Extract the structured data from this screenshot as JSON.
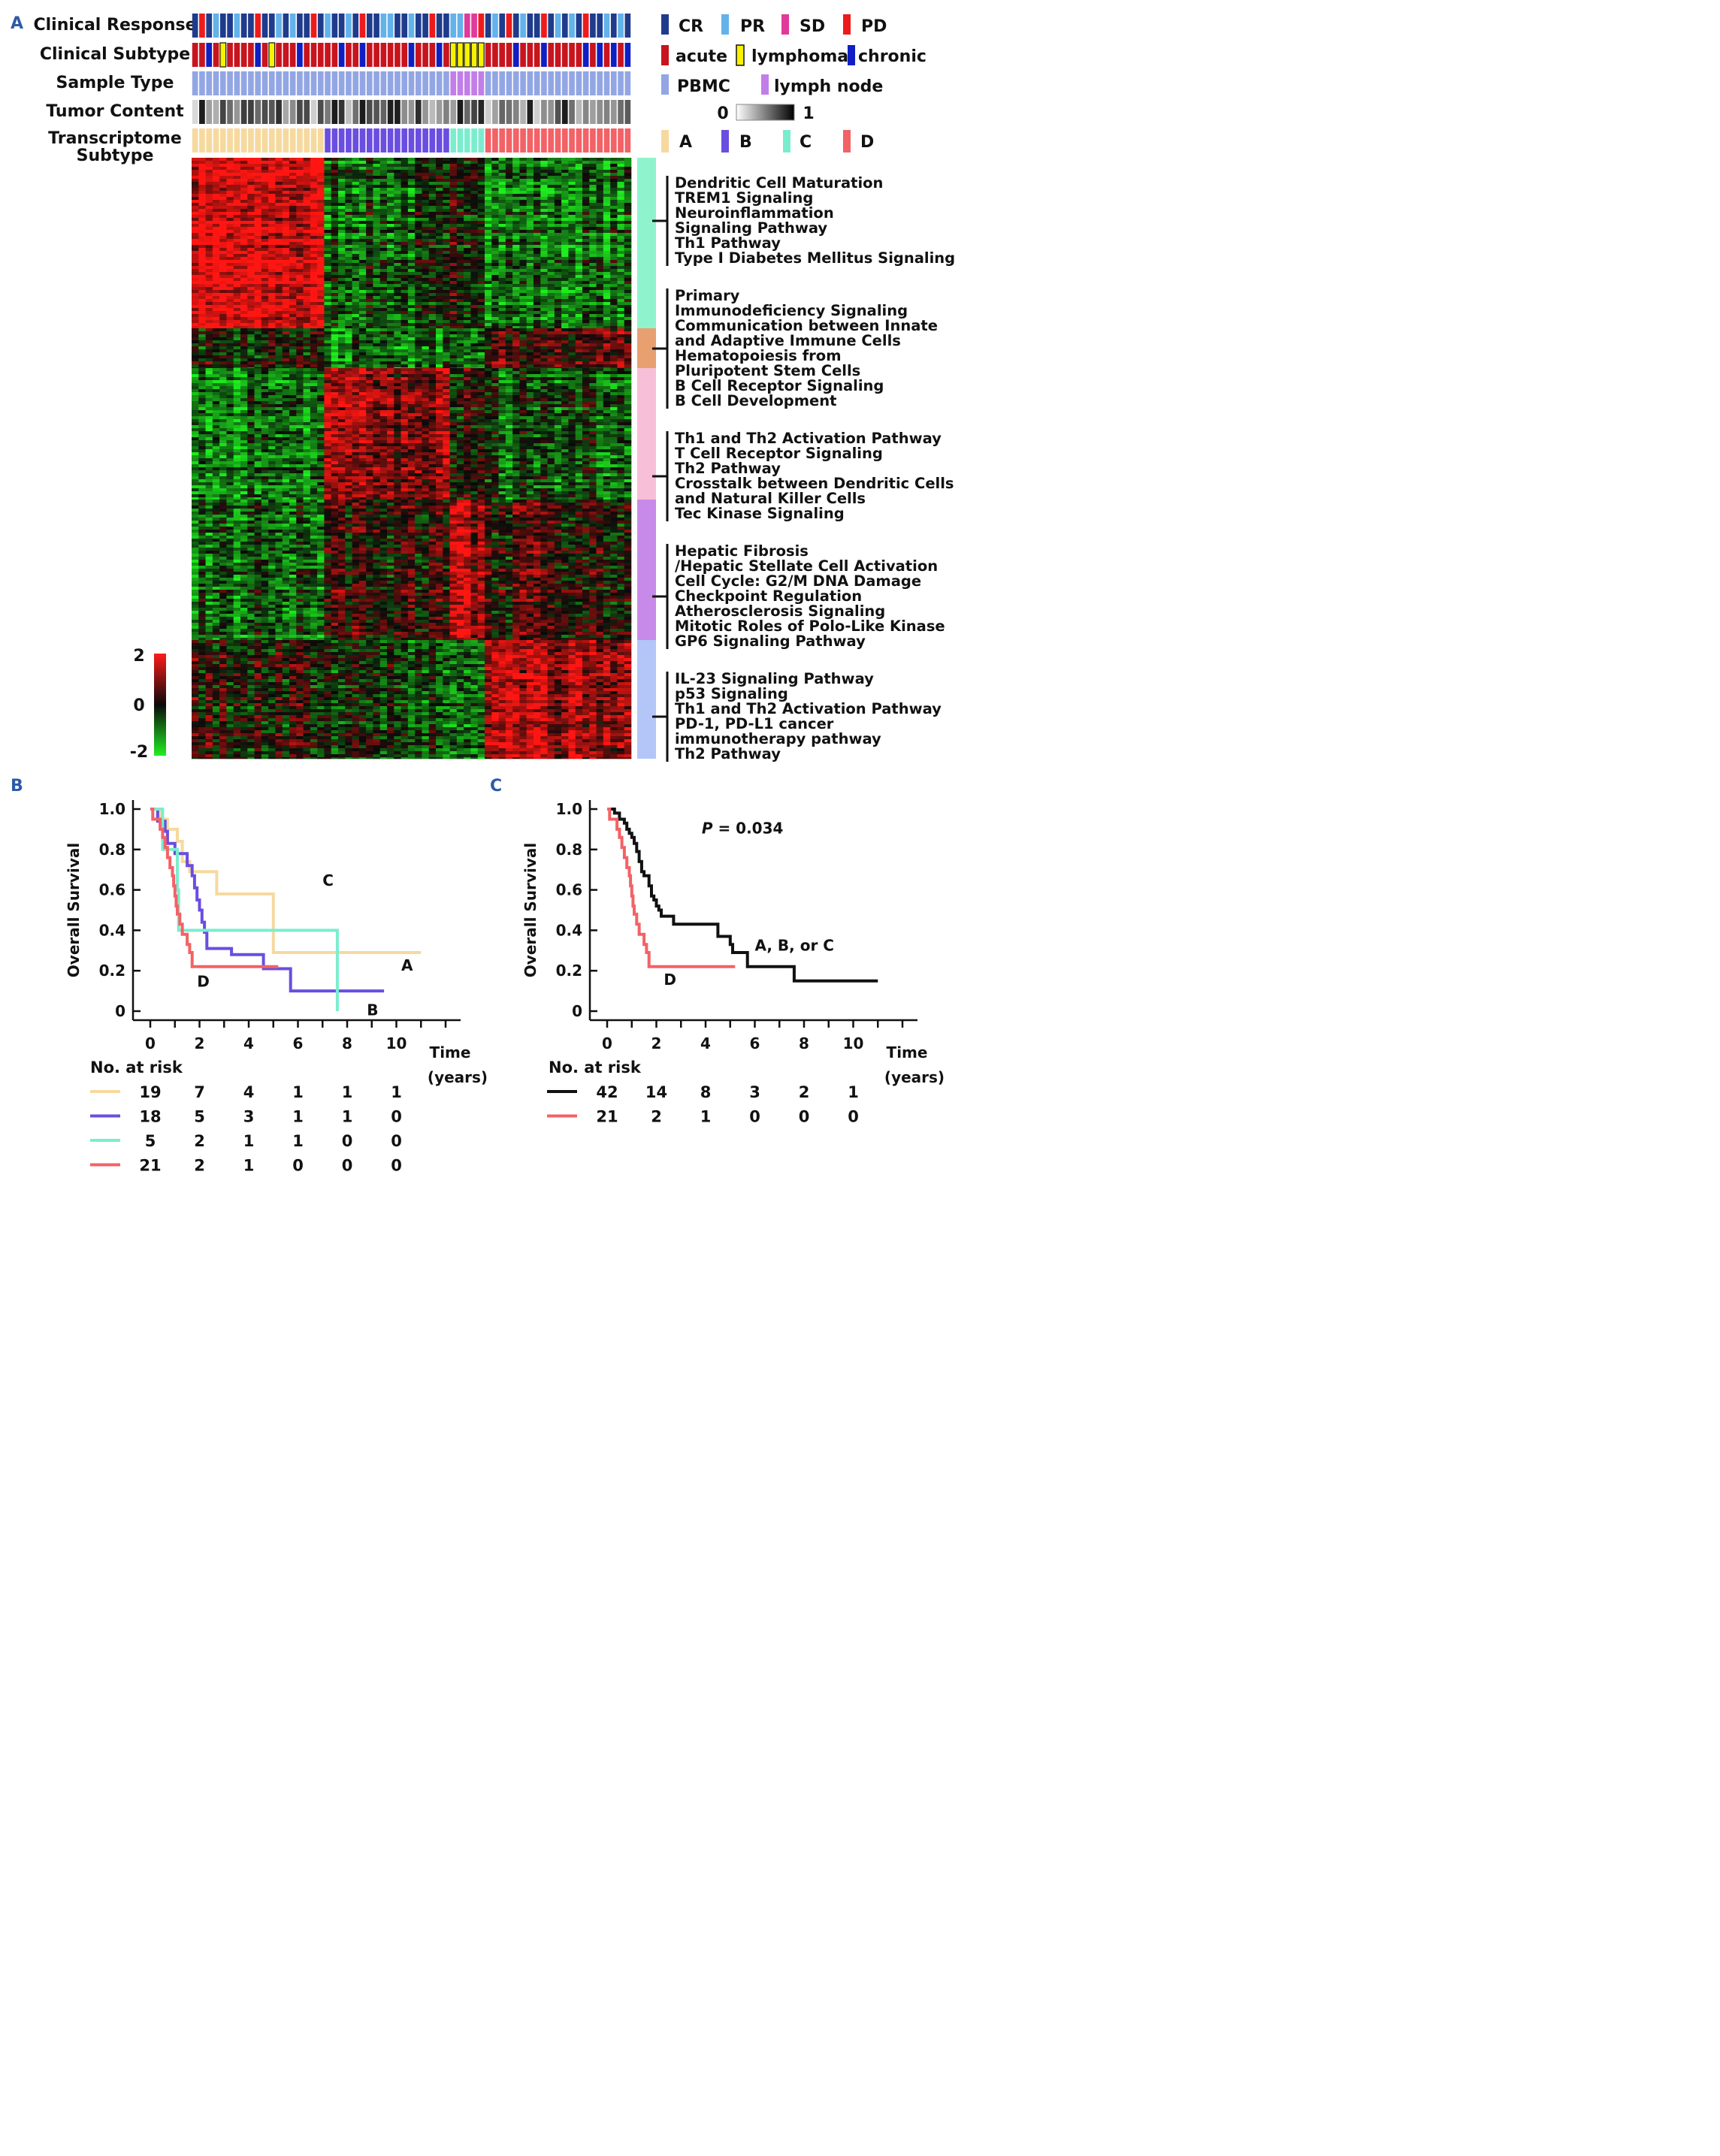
{
  "panels": {
    "a": "A",
    "b": "B",
    "c": "C"
  },
  "colors": {
    "CR": "#1f3b8c",
    "PR": "#63b2ea",
    "SD": "#e03a9b",
    "PD": "#ee1b1b",
    "acute": "#c8141e",
    "lymphoma": "#f6f200",
    "chronic": "#0f1fc4",
    "PBMC": "#93a6e4",
    "lymph_node": "#c27ee8",
    "A": "#f6d99e",
    "B": "#6a4ee0",
    "C": "#7bedcf",
    "D": "#f26266",
    "module1": "#8ff4cd",
    "module2": "#e8a070",
    "module3": "#f8bfd8",
    "module4": "#c88ae8",
    "module5": "#b4c6f8"
  },
  "tracks": {
    "labels": [
      "Clinical Response",
      "Clinical Subtype",
      "Sample Type",
      "Tumor Content"
    ],
    "transcriptome_label": [
      "Transcriptome",
      "Subtype"
    ]
  },
  "legend": {
    "response": [
      "CR",
      "PR",
      "SD",
      "PD"
    ],
    "subtype": [
      "acute",
      "lymphoma",
      "chronic"
    ],
    "sample": [
      "PBMC",
      "lymph node"
    ],
    "tumor": {
      "min": "0",
      "max": "1"
    },
    "transcriptome": [
      "A",
      "B",
      "C",
      "D"
    ]
  },
  "heatmap": {
    "scale": {
      "max": "2",
      "mid": "0",
      "min": "-2"
    },
    "group_counts": {
      "A": 19,
      "B": 18,
      "C": 5,
      "D": 21
    }
  },
  "pathways": [
    [
      "Dendritic Cell Maturation",
      "TREM1 Signaling",
      "Neuroinflammation",
      "   Signaling Pathway",
      "Th1 Pathway",
      "Type I Diabetes Mellitus Signaling"
    ],
    [
      "Primary",
      "   Immunodeficiency Signaling",
      "Communication between Innate",
      "   and Adaptive Immune Cells",
      "Hematopoiesis from",
      "   Pluripotent Stem Cells",
      "B Cell Receptor Signaling",
      "B Cell Development"
    ],
    [
      "Th1 and Th2 Activation Pathway",
      "T Cell Receptor Signaling",
      "Th2 Pathway",
      "Crosstalk between Dendritic Cells",
      "   and Natural Killer Cells",
      "Tec Kinase Signaling"
    ],
    [
      "Hepatic Fibrosis",
      "   /Hepatic Stellate Cell Activation",
      "Cell Cycle: G2/M DNA Damage",
      "   Checkpoint Regulation",
      "Atherosclerosis Signaling",
      "Mitotic Roles of Polo-Like Kinase",
      "GP6 Signaling Pathway"
    ],
    [
      "IL-23 Signaling Pathway",
      "p53 Signaling",
      "Th1 and Th2 Activation Pathway",
      "PD-1, PD-L1 cancer",
      "   immunotherapy pathway",
      "Th2 Pathway"
    ]
  ],
  "chart_data": [
    {
      "type": "line",
      "panel": "B",
      "ylabel": "Overall Survival",
      "xlabel": "Time (years)",
      "xlabel_lines": [
        "Time",
        "(years)"
      ],
      "xlim": [
        0,
        12
      ],
      "ylim": [
        0,
        1.0
      ],
      "xticks": [
        0,
        2,
        4,
        6,
        8,
        10
      ],
      "yticks": [
        0,
        0.2,
        0.4,
        0.6,
        0.8,
        1.0
      ],
      "ytick_labels": [
        "0",
        "0.2",
        "0.4",
        "0.6",
        "0.8",
        "1.0"
      ],
      "series": [
        {
          "name": "A",
          "color": "#f6d99e",
          "label_at": [
            10.2,
            0.2
          ],
          "points": [
            [
              0,
              1.0
            ],
            [
              0.4,
              1.0
            ],
            [
              0.4,
              0.95
            ],
            [
              0.7,
              0.95
            ],
            [
              0.7,
              0.9
            ],
            [
              1.1,
              0.9
            ],
            [
              1.1,
              0.84
            ],
            [
              1.3,
              0.84
            ],
            [
              1.3,
              0.74
            ],
            [
              1.6,
              0.74
            ],
            [
              1.6,
              0.69
            ],
            [
              2.7,
              0.69
            ],
            [
              2.7,
              0.58
            ],
            [
              5.0,
              0.58
            ],
            [
              5.0,
              0.29
            ],
            [
              11.0,
              0.29
            ]
          ]
        },
        {
          "name": "B",
          "color": "#6a4ee0",
          "label_at": [
            8.8,
            -0.02
          ],
          "points": [
            [
              0,
              1.0
            ],
            [
              0.3,
              1.0
            ],
            [
              0.3,
              0.94
            ],
            [
              0.6,
              0.94
            ],
            [
              0.6,
              0.89
            ],
            [
              0.7,
              0.89
            ],
            [
              0.7,
              0.83
            ],
            [
              1.0,
              0.83
            ],
            [
              1.0,
              0.78
            ],
            [
              1.5,
              0.78
            ],
            [
              1.5,
              0.72
            ],
            [
              1.7,
              0.72
            ],
            [
              1.7,
              0.67
            ],
            [
              1.8,
              0.67
            ],
            [
              1.8,
              0.61
            ],
            [
              1.9,
              0.61
            ],
            [
              1.9,
              0.55
            ],
            [
              2.0,
              0.55
            ],
            [
              2.0,
              0.5
            ],
            [
              2.1,
              0.5
            ],
            [
              2.1,
              0.44
            ],
            [
              2.2,
              0.44
            ],
            [
              2.2,
              0.39
            ],
            [
              2.3,
              0.39
            ],
            [
              2.3,
              0.31
            ],
            [
              3.3,
              0.31
            ],
            [
              3.3,
              0.28
            ],
            [
              4.6,
              0.28
            ],
            [
              4.6,
              0.21
            ],
            [
              5.7,
              0.21
            ],
            [
              5.7,
              0.1
            ],
            [
              9.5,
              0.1
            ]
          ]
        },
        {
          "name": "C",
          "color": "#7bedcf",
          "label_at": [
            7.0,
            0.62
          ],
          "points": [
            [
              0,
              1.0
            ],
            [
              0.5,
              1.0
            ],
            [
              0.5,
              0.8
            ],
            [
              1.1,
              0.8
            ],
            [
              1.1,
              0.6
            ],
            [
              1.15,
              0.6
            ],
            [
              1.15,
              0.4
            ],
            [
              7.6,
              0.4
            ],
            [
              7.6,
              0.0
            ]
          ]
        },
        {
          "name": "D",
          "color": "#f26266",
          "label_at": [
            1.9,
            0.12
          ],
          "points": [
            [
              0,
              1.0
            ],
            [
              0.1,
              1.0
            ],
            [
              0.1,
              0.95
            ],
            [
              0.4,
              0.95
            ],
            [
              0.4,
              0.9
            ],
            [
              0.5,
              0.9
            ],
            [
              0.5,
              0.86
            ],
            [
              0.6,
              0.86
            ],
            [
              0.6,
              0.81
            ],
            [
              0.7,
              0.81
            ],
            [
              0.7,
              0.76
            ],
            [
              0.8,
              0.76
            ],
            [
              0.8,
              0.71
            ],
            [
              0.9,
              0.71
            ],
            [
              0.9,
              0.67
            ],
            [
              0.95,
              0.67
            ],
            [
              0.95,
              0.62
            ],
            [
              1.0,
              0.62
            ],
            [
              1.0,
              0.57
            ],
            [
              1.05,
              0.57
            ],
            [
              1.05,
              0.52
            ],
            [
              1.1,
              0.52
            ],
            [
              1.1,
              0.48
            ],
            [
              1.2,
              0.48
            ],
            [
              1.2,
              0.43
            ],
            [
              1.3,
              0.43
            ],
            [
              1.3,
              0.38
            ],
            [
              1.5,
              0.38
            ],
            [
              1.5,
              0.33
            ],
            [
              1.6,
              0.33
            ],
            [
              1.6,
              0.29
            ],
            [
              1.7,
              0.29
            ],
            [
              1.7,
              0.22
            ],
            [
              5.2,
              0.22
            ]
          ]
        }
      ],
      "risk_table": {
        "title": "No. at risk",
        "times": [
          "0",
          "2",
          "4",
          "6",
          "8",
          "10"
        ],
        "rows": [
          {
            "color": "#f6d99e",
            "values": [
              "19",
              "7",
              "4",
              "1",
              "1",
              "1"
            ]
          },
          {
            "color": "#6a4ee0",
            "values": [
              "18",
              "5",
              "3",
              "1",
              "1",
              "0"
            ]
          },
          {
            "color": "#7bedcf",
            "values": [
              "5",
              "2",
              "1",
              "1",
              "0",
              "0"
            ]
          },
          {
            "color": "#f26266",
            "values": [
              "21",
              "2",
              "1",
              "0",
              "0",
              "0"
            ]
          }
        ]
      }
    },
    {
      "type": "line",
      "panel": "C",
      "ylabel": "Overall Survival",
      "xlabel": "Time (years)",
      "xlabel_lines": [
        "Time",
        "(years)"
      ],
      "xlim": [
        0,
        12
      ],
      "ylim": [
        0,
        1.0
      ],
      "xticks": [
        0,
        2,
        4,
        6,
        8,
        10
      ],
      "yticks": [
        0,
        0.2,
        0.4,
        0.6,
        0.8,
        1.0
      ],
      "ytick_labels": [
        "0",
        "0.2",
        "0.4",
        "0.6",
        "0.8",
        "1.0"
      ],
      "annotation": {
        "p_label": "P",
        "p_value": " = 0.034",
        "at": [
          5.5,
          0.88
        ]
      },
      "series": [
        {
          "name": "A, B, or C",
          "color": "#111111",
          "label_at": [
            6.0,
            0.3
          ],
          "points": [
            [
              0,
              1.0
            ],
            [
              0.3,
              1.0
            ],
            [
              0.3,
              0.98
            ],
            [
              0.5,
              0.98
            ],
            [
              0.5,
              0.95
            ],
            [
              0.7,
              0.95
            ],
            [
              0.7,
              0.93
            ],
            [
              0.8,
              0.93
            ],
            [
              0.8,
              0.9
            ],
            [
              0.9,
              0.9
            ],
            [
              0.9,
              0.88
            ],
            [
              1.0,
              0.88
            ],
            [
              1.0,
              0.86
            ],
            [
              1.1,
              0.86
            ],
            [
              1.1,
              0.83
            ],
            [
              1.2,
              0.83
            ],
            [
              1.2,
              0.79
            ],
            [
              1.3,
              0.79
            ],
            [
              1.3,
              0.74
            ],
            [
              1.4,
              0.74
            ],
            [
              1.4,
              0.69
            ],
            [
              1.5,
              0.69
            ],
            [
              1.5,
              0.67
            ],
            [
              1.7,
              0.67
            ],
            [
              1.7,
              0.62
            ],
            [
              1.8,
              0.62
            ],
            [
              1.8,
              0.57
            ],
            [
              1.9,
              0.57
            ],
            [
              1.9,
              0.55
            ],
            [
              2.0,
              0.55
            ],
            [
              2.0,
              0.52
            ],
            [
              2.1,
              0.52
            ],
            [
              2.1,
              0.5
            ],
            [
              2.2,
              0.5
            ],
            [
              2.2,
              0.47
            ],
            [
              2.7,
              0.47
            ],
            [
              2.7,
              0.43
            ],
            [
              4.5,
              0.43
            ],
            [
              4.5,
              0.37
            ],
            [
              5.0,
              0.37
            ],
            [
              5.0,
              0.33
            ],
            [
              5.1,
              0.33
            ],
            [
              5.1,
              0.29
            ],
            [
              5.7,
              0.29
            ],
            [
              5.7,
              0.22
            ],
            [
              7.6,
              0.22
            ],
            [
              7.6,
              0.15
            ],
            [
              11.0,
              0.15
            ]
          ]
        },
        {
          "name": "D",
          "color": "#f26266",
          "label_at": [
            2.3,
            0.13
          ],
          "points": [
            [
              0,
              1.0
            ],
            [
              0.1,
              1.0
            ],
            [
              0.1,
              0.95
            ],
            [
              0.4,
              0.95
            ],
            [
              0.4,
              0.9
            ],
            [
              0.5,
              0.9
            ],
            [
              0.5,
              0.86
            ],
            [
              0.6,
              0.86
            ],
            [
              0.6,
              0.81
            ],
            [
              0.7,
              0.81
            ],
            [
              0.7,
              0.76
            ],
            [
              0.8,
              0.76
            ],
            [
              0.8,
              0.71
            ],
            [
              0.9,
              0.71
            ],
            [
              0.9,
              0.67
            ],
            [
              0.95,
              0.67
            ],
            [
              0.95,
              0.62
            ],
            [
              1.0,
              0.62
            ],
            [
              1.0,
              0.57
            ],
            [
              1.05,
              0.57
            ],
            [
              1.05,
              0.52
            ],
            [
              1.1,
              0.52
            ],
            [
              1.1,
              0.48
            ],
            [
              1.2,
              0.48
            ],
            [
              1.2,
              0.43
            ],
            [
              1.3,
              0.43
            ],
            [
              1.3,
              0.38
            ],
            [
              1.5,
              0.38
            ],
            [
              1.5,
              0.33
            ],
            [
              1.6,
              0.33
            ],
            [
              1.6,
              0.29
            ],
            [
              1.7,
              0.29
            ],
            [
              1.7,
              0.22
            ],
            [
              5.2,
              0.22
            ]
          ]
        }
      ],
      "risk_table": {
        "title": "No. at risk",
        "times": [
          "0",
          "2",
          "4",
          "6",
          "8",
          "10"
        ],
        "rows": [
          {
            "color": "#111111",
            "values": [
              "42",
              "14",
              "8",
              "3",
              "2",
              "1"
            ]
          },
          {
            "color": "#f26266",
            "values": [
              "21",
              "2",
              "1",
              "0",
              "0",
              "0"
            ]
          }
        ]
      }
    }
  ]
}
